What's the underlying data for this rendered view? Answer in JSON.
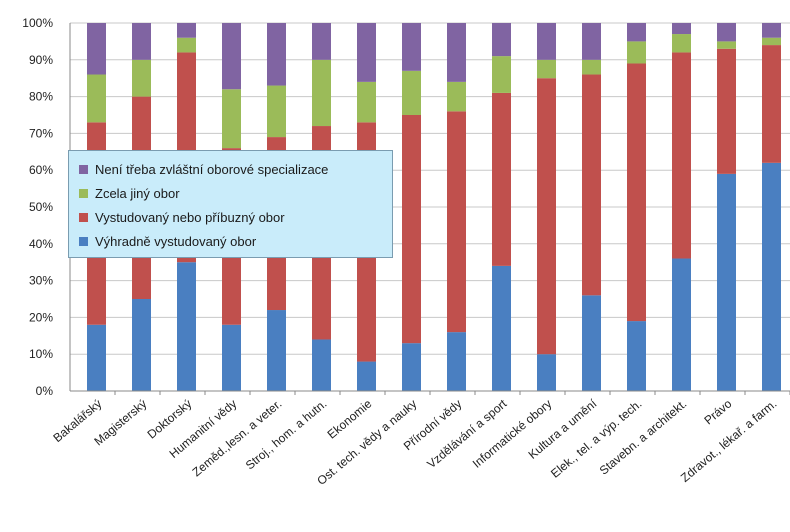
{
  "chart_data": {
    "type": "bar",
    "stacked": true,
    "percent": true,
    "categories": [
      "Bakalářský",
      "Magisterský",
      "Doktorský",
      "Humanitní vědy",
      "Zeměd.,lesn. a veter.",
      "Stroj., hom. a hutn.",
      "Ekonomie",
      "Ost. tech. vědy a nauky",
      "Přírodní vědy",
      "Vzdělávání a sport",
      "Informatické obory",
      "Kultura a umění",
      "Elek., tel. a výp. tech.",
      "Stavebn. a architekt.",
      "Právo",
      "Zdravot., lékař. a farm."
    ],
    "series": [
      {
        "name": "Výhradně vystudovaný obor",
        "color": "#4a7fc1",
        "values": [
          18,
          25,
          35,
          18,
          22,
          14,
          8,
          13,
          16,
          34,
          10,
          26,
          19,
          36,
          59,
          62
        ]
      },
      {
        "name": "Vystudovaný nebo příbuzný obor",
        "color": "#c0504d",
        "values": [
          55,
          55,
          57,
          48,
          47,
          58,
          65,
          62,
          60,
          47,
          75,
          60,
          70,
          56,
          34,
          32
        ]
      },
      {
        "name": "Zcela jiný obor",
        "color": "#9bbb59",
        "values": [
          13,
          10,
          4,
          16,
          14,
          18,
          11,
          12,
          8,
          10,
          5,
          4,
          6,
          5,
          2,
          2
        ]
      },
      {
        "name": "Není třeba zvláštní oborové specializace",
        "color": "#8064a2",
        "values": [
          14,
          10,
          4,
          18,
          17,
          10,
          16,
          13,
          16,
          9,
          10,
          10,
          5,
          3,
          5,
          4
        ]
      }
    ],
    "yticks": [
      "0%",
      "10%",
      "20%",
      "30%",
      "40%",
      "50%",
      "60%",
      "70%",
      "80%",
      "90%",
      "100%"
    ],
    "ylim": [
      0,
      100
    ],
    "grid": true,
    "legend_entries": [
      "Není třeba zvláštní oborové specializace",
      "Zcela jiný obor",
      "Vystudovaný nebo příbuzný obor",
      "Výhradně vystudovaný obor"
    ],
    "legend_position": "upper-left overlay"
  }
}
